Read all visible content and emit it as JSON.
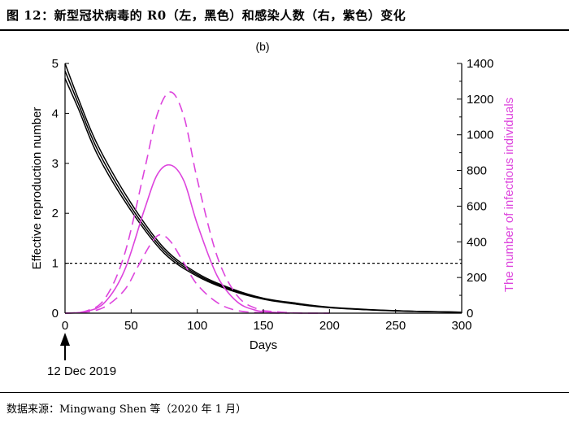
{
  "figure": {
    "title": "图 12：新型冠状病毒的 R0（左，黑色）和感染人数（右，紫色）变化",
    "source": "数据来源：Mingwang Shen 等（2020 年 1 月）"
  },
  "chart_data": {
    "type": "line",
    "panel_label": "(b)",
    "xlabel": "Days",
    "ylabel_left": "Effective reproduction number",
    "ylabel_right": "The number of infectious individuals",
    "xlim": [
      0,
      300
    ],
    "ylim_left": [
      0,
      5
    ],
    "ylim_right": [
      0,
      1400
    ],
    "x_ticks": [
      "0",
      "50",
      "100",
      "150",
      "200",
      "250",
      "300"
    ],
    "y_ticks_left": [
      "0",
      "1",
      "2",
      "3",
      "4",
      "5"
    ],
    "y_ticks_right": [
      "0",
      "200",
      "400",
      "600",
      "800",
      "1000",
      "1200",
      "1400"
    ],
    "threshold": {
      "value": 1,
      "style": "dotted"
    },
    "annotation": {
      "text": "12 Dec 2019",
      "x": 0
    },
    "colors": {
      "r0": "#000000",
      "infectious": "#dd44dd"
    },
    "series": [
      {
        "name": "R0 upper",
        "axis": "left",
        "color": "#000000",
        "dash": "solid",
        "x": [
          0,
          10,
          25,
          50,
          75,
          100,
          125,
          150,
          175,
          200,
          250,
          300
        ],
        "values": [
          5.0,
          4.3,
          3.35,
          2.2,
          1.3,
          0.8,
          0.5,
          0.3,
          0.2,
          0.12,
          0.05,
          0.02
        ]
      },
      {
        "name": "R0 middle",
        "axis": "left",
        "color": "#000000",
        "dash": "solid",
        "x": [
          0,
          10,
          25,
          50,
          75,
          100,
          125,
          150,
          175,
          200,
          250,
          300
        ],
        "values": [
          4.85,
          4.2,
          3.25,
          2.12,
          1.25,
          0.77,
          0.48,
          0.29,
          0.19,
          0.115,
          0.048,
          0.02
        ]
      },
      {
        "name": "R0 lower",
        "axis": "left",
        "color": "#000000",
        "dash": "solid",
        "x": [
          0,
          10,
          25,
          50,
          75,
          100,
          125,
          150,
          175,
          200,
          250,
          300
        ],
        "values": [
          4.7,
          4.1,
          3.15,
          2.05,
          1.2,
          0.74,
          0.46,
          0.28,
          0.18,
          0.11,
          0.045,
          0.02
        ]
      },
      {
        "name": "Infectious upper",
        "axis": "right",
        "color": "#dd44dd",
        "dash": "dashed",
        "x": [
          0,
          15,
          30,
          45,
          60,
          70,
          80,
          90,
          100,
          115,
          130,
          145,
          160,
          180,
          200
        ],
        "values": [
          0,
          10,
          80,
          330,
          800,
          1120,
          1240,
          1100,
          750,
          320,
          100,
          25,
          8,
          0,
          0
        ]
      },
      {
        "name": "Infectious central",
        "axis": "right",
        "color": "#dd44dd",
        "dash": "solid",
        "x": [
          0,
          15,
          30,
          45,
          60,
          70,
          80,
          90,
          100,
          115,
          130,
          145,
          160,
          180,
          200
        ],
        "values": [
          0,
          8,
          60,
          240,
          580,
          780,
          830,
          740,
          500,
          210,
          65,
          15,
          4,
          0,
          0
        ]
      },
      {
        "name": "Infectious lower",
        "axis": "right",
        "color": "#dd44dd",
        "dash": "dashed",
        "x": [
          0,
          15,
          30,
          45,
          55,
          65,
          72,
          80,
          90,
          100,
          115,
          130,
          150,
          170
        ],
        "values": [
          0,
          5,
          35,
          130,
          260,
          390,
          440,
          400,
          280,
          160,
          60,
          15,
          2,
          0
        ]
      }
    ]
  }
}
